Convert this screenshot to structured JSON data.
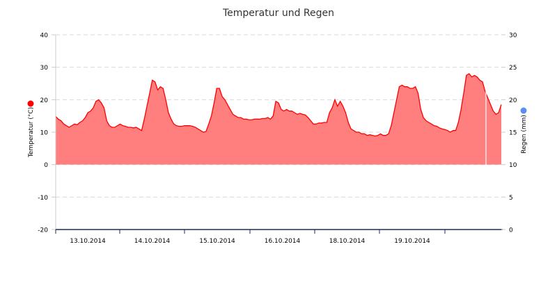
{
  "chart_data": {
    "type": "area",
    "title": "Temperatur und Regen",
    "y_left_label": "Temperatur (°C)",
    "y_right_label": "Regen (mm)",
    "y_left_range": [
      -20,
      40
    ],
    "y_left_ticks": [
      "-20",
      "-10",
      "0",
      "10",
      "20",
      "30",
      "40"
    ],
    "y_right_range": [
      0,
      30
    ],
    "y_right_ticks": [
      "0",
      "5",
      "10",
      "15",
      "20",
      "25",
      "30"
    ],
    "x_range": [
      "2014-10-13T00:00",
      "2014-10-20T00:00"
    ],
    "x_tick_labels": [
      "13.10.2014",
      "14.10.2014",
      "15.10.2014",
      "16.10.2014",
      "18.10.2014",
      "19.10.2014"
    ],
    "grid": "horizontal dashed",
    "series": [
      {
        "name": "Temperatur",
        "color": "#ff0000",
        "fill": "#ff7f7f",
        "time_hours": [
          0,
          1,
          2,
          3,
          4,
          5,
          6,
          7,
          8,
          9,
          10,
          11,
          12,
          13,
          14,
          15,
          16,
          17,
          18,
          19,
          20,
          21,
          22,
          23,
          24,
          25,
          26,
          27,
          28,
          29,
          30,
          31,
          32,
          33,
          34,
          35,
          36,
          37,
          38,
          39,
          40,
          41,
          42,
          43,
          44,
          45,
          46,
          47,
          48,
          49,
          50,
          51,
          52,
          53,
          54,
          55,
          56,
          57,
          58,
          59,
          60,
          61,
          62,
          63,
          64,
          65,
          66,
          67,
          68,
          69,
          70,
          71,
          72,
          73,
          74,
          75,
          76,
          77,
          78,
          79,
          80,
          81,
          82,
          83,
          84,
          85,
          86,
          87,
          88,
          89,
          90,
          91,
          92,
          93,
          94,
          95,
          96,
          97,
          98,
          99,
          100,
          101,
          102,
          103,
          104,
          105,
          106,
          107,
          108,
          109,
          110,
          111,
          112,
          113,
          114,
          115,
          116,
          117,
          118,
          119,
          120,
          121,
          122,
          123,
          124,
          125,
          126,
          127,
          128,
          129,
          130,
          131,
          132,
          133,
          134,
          135,
          136,
          137,
          138,
          139,
          140,
          141,
          142,
          143,
          144,
          145,
          146,
          147,
          148,
          149,
          150,
          151,
          152,
          153,
          154,
          155,
          156,
          157,
          158,
          159,
          160,
          161,
          162,
          163,
          164,
          165,
          166
        ],
        "values": [
          14.8,
          14,
          13.5,
          12.5,
          12,
          11.5,
          12,
          12.5,
          12.3,
          13,
          13.5,
          14.5,
          16,
          16.5,
          17.5,
          19.5,
          20,
          19,
          17.5,
          13.5,
          12,
          11.5,
          11.5,
          12,
          12.5,
          12,
          11.8,
          11.5,
          11.5,
          11.3,
          11.5,
          11,
          10.5,
          14,
          18,
          22,
          26,
          25.5,
          23,
          24,
          23.5,
          20,
          16,
          14,
          12.5,
          12,
          11.8,
          11.8,
          12,
          12,
          12,
          11.8,
          11.5,
          11,
          10.5,
          10,
          10.2,
          12.5,
          15,
          19,
          23.5,
          23.5,
          21,
          20,
          18.5,
          17,
          15.5,
          15,
          14.5,
          14.5,
          14,
          14,
          13.8,
          13.8,
          14,
          14,
          14,
          14.2,
          14.2,
          14.5,
          14,
          15,
          19.5,
          19,
          17,
          16.5,
          17,
          16.5,
          16.5,
          16,
          15.5,
          15.8,
          15.5,
          15.3,
          14.5,
          13.5,
          12.5,
          12.5,
          12.8,
          12.8,
          13,
          13,
          16,
          17.5,
          20,
          18,
          19.5,
          18,
          16,
          13,
          11,
          10.5,
          10,
          10,
          9.5,
          9.5,
          9,
          9.2,
          9,
          8.8,
          9,
          9.5,
          9,
          9,
          9.5,
          12,
          16,
          20,
          24,
          24.5,
          24,
          24,
          23.5,
          23.5,
          24,
          22,
          17,
          14.5,
          13.5,
          13,
          12.5,
          12,
          11.8,
          11.3,
          11,
          10.8,
          10.5,
          10,
          10.5,
          10.5,
          13,
          17,
          22,
          27.5,
          28,
          27,
          27.5,
          27,
          26,
          25.5,
          22.5,
          20.5,
          18.5,
          16.5,
          15.5,
          16,
          18.5
        ]
      }
    ]
  }
}
